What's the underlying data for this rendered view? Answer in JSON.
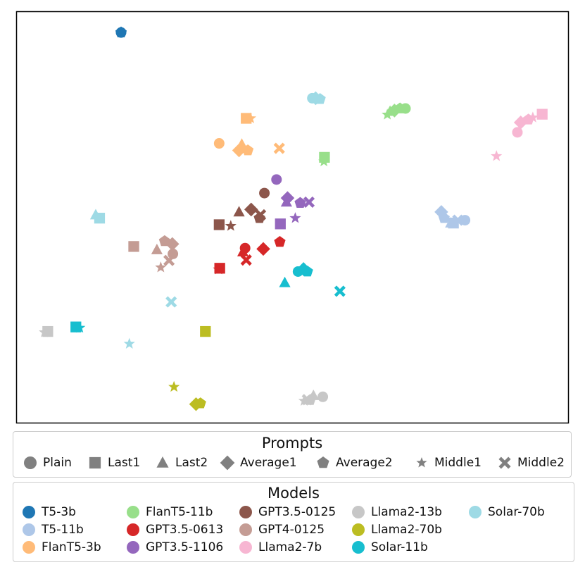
{
  "chart_data": {
    "type": "scatter",
    "title": "",
    "xlabel": "",
    "ylabel": "",
    "xlim": [
      0,
      100
    ],
    "ylim": [
      0,
      100
    ],
    "axes_ticks": false,
    "prompts_legend": {
      "title": "Prompts",
      "entries": [
        {
          "name": "Plain",
          "marker": "circle"
        },
        {
          "name": "Last1",
          "marker": "square"
        },
        {
          "name": "Last2",
          "marker": "triangle"
        },
        {
          "name": "Average1",
          "marker": "diamond"
        },
        {
          "name": "Average2",
          "marker": "pentagon"
        },
        {
          "name": "Middle1",
          "marker": "star"
        },
        {
          "name": "Middle2",
          "marker": "x"
        }
      ]
    },
    "models_legend": {
      "title": "Models",
      "entries": [
        {
          "name": "T5-3b",
          "color": "#1f77b4"
        },
        {
          "name": "T5-11b",
          "color": "#aec7e8"
        },
        {
          "name": "FlanT5-3b",
          "color": "#ffbb78"
        },
        {
          "name": "FlanT5-11b",
          "color": "#98df8a"
        },
        {
          "name": "GPT3.5-0613",
          "color": "#d62728"
        },
        {
          "name": "GPT3.5-1106",
          "color": "#9467bd"
        },
        {
          "name": "GPT3.5-0125",
          "color": "#8c564b"
        },
        {
          "name": "GPT4-0125",
          "color": "#c49c94"
        },
        {
          "name": "Llama2-7b",
          "color": "#f7b6d2"
        },
        {
          "name": "Llama2-13b",
          "color": "#c7c7c7"
        },
        {
          "name": "Llama2-70b",
          "color": "#bcbd22"
        },
        {
          "name": "Solar-11b",
          "color": "#17becf"
        },
        {
          "name": "Solar-70b",
          "color": "#9edae5"
        }
      ]
    },
    "series": [
      {
        "model": "T5-3b",
        "color": "#1f77b4",
        "points": [
          {
            "prompt": "star",
            "x": 18.9,
            "y": 95.0
          },
          {
            "prompt": "circle",
            "x": 18.9,
            "y": 95.0
          },
          {
            "prompt": "pentagon",
            "x": 18.9,
            "y": 95.0
          }
        ]
      },
      {
        "model": "T5-11b",
        "color": "#aec7e8",
        "points": [
          {
            "prompt": "diamond",
            "x": 77.0,
            "y": 51.3
          },
          {
            "prompt": "pentagon",
            "x": 77.5,
            "y": 49.8
          },
          {
            "prompt": "triangle",
            "x": 78.7,
            "y": 48.6
          },
          {
            "prompt": "square",
            "x": 79.2,
            "y": 48.6
          },
          {
            "prompt": "x",
            "x": 80.0,
            "y": 49.3
          },
          {
            "prompt": "circle",
            "x": 81.3,
            "y": 49.3
          }
        ]
      },
      {
        "model": "FlanT5-3b",
        "color": "#ffbb78",
        "points": [
          {
            "prompt": "square",
            "x": 41.6,
            "y": 74.1
          },
          {
            "prompt": "star",
            "x": 42.4,
            "y": 74.1
          },
          {
            "prompt": "circle",
            "x": 36.7,
            "y": 68.0
          },
          {
            "prompt": "triangle",
            "x": 40.8,
            "y": 67.8
          },
          {
            "prompt": "diamond",
            "x": 40.3,
            "y": 66.3
          },
          {
            "prompt": "pentagon",
            "x": 41.9,
            "y": 66.3
          },
          {
            "prompt": "x",
            "x": 47.6,
            "y": 66.8
          }
        ]
      },
      {
        "model": "FlanT5-11b",
        "color": "#98df8a",
        "points": [
          {
            "prompt": "star",
            "x": 67.2,
            "y": 75.0
          },
          {
            "prompt": "triangle",
            "x": 67.7,
            "y": 75.8
          },
          {
            "prompt": "diamond",
            "x": 68.5,
            "y": 76.0
          },
          {
            "prompt": "pentagon",
            "x": 69.5,
            "y": 76.5
          },
          {
            "prompt": "circle",
            "x": 70.5,
            "y": 76.5
          },
          {
            "prompt": "square",
            "x": 55.8,
            "y": 64.6
          },
          {
            "prompt": "star",
            "x": 55.7,
            "y": 63.6
          }
        ]
      },
      {
        "model": "GPT3.5-0613",
        "color": "#d62728",
        "points": [
          {
            "prompt": "square",
            "x": 36.8,
            "y": 37.6
          },
          {
            "prompt": "star",
            "x": 36.6,
            "y": 37.3
          },
          {
            "prompt": "circle",
            "x": 41.4,
            "y": 42.5
          },
          {
            "prompt": "triangle",
            "x": 41.0,
            "y": 41.6
          },
          {
            "prompt": "x",
            "x": 41.6,
            "y": 39.6
          },
          {
            "prompt": "diamond",
            "x": 44.7,
            "y": 42.3
          },
          {
            "prompt": "pentagon",
            "x": 47.7,
            "y": 44.0
          }
        ]
      },
      {
        "model": "GPT3.5-1106",
        "color": "#9467bd",
        "points": [
          {
            "prompt": "circle",
            "x": 47.1,
            "y": 59.2
          },
          {
            "prompt": "diamond",
            "x": 49.1,
            "y": 54.7
          },
          {
            "prompt": "triangle",
            "x": 48.9,
            "y": 53.7
          },
          {
            "prompt": "pentagon",
            "x": 51.4,
            "y": 53.5
          },
          {
            "prompt": "x",
            "x": 53.0,
            "y": 53.7
          },
          {
            "prompt": "star",
            "x": 50.5,
            "y": 49.8
          },
          {
            "prompt": "square",
            "x": 47.8,
            "y": 48.4
          }
        ]
      },
      {
        "model": "GPT3.5-0125",
        "color": "#8c564b",
        "points": [
          {
            "prompt": "circle",
            "x": 44.9,
            "y": 55.9
          },
          {
            "prompt": "diamond",
            "x": 42.5,
            "y": 51.9
          },
          {
            "prompt": "x",
            "x": 44.2,
            "y": 50.6
          },
          {
            "prompt": "pentagon",
            "x": 44.0,
            "y": 49.8
          },
          {
            "prompt": "triangle",
            "x": 40.3,
            "y": 51.3
          },
          {
            "prompt": "star",
            "x": 38.8,
            "y": 47.9
          },
          {
            "prompt": "square",
            "x": 36.7,
            "y": 48.2
          }
        ]
      },
      {
        "model": "GPT4-0125",
        "color": "#c49c94",
        "points": [
          {
            "prompt": "square",
            "x": 21.2,
            "y": 42.9
          },
          {
            "prompt": "pentagon",
            "x": 26.8,
            "y": 44.2
          },
          {
            "prompt": "diamond",
            "x": 28.2,
            "y": 43.5
          },
          {
            "prompt": "circle",
            "x": 28.3,
            "y": 41.1
          },
          {
            "prompt": "triangle",
            "x": 25.4,
            "y": 42.1
          },
          {
            "prompt": "x",
            "x": 27.6,
            "y": 39.5
          },
          {
            "prompt": "star",
            "x": 26.1,
            "y": 37.8
          }
        ]
      },
      {
        "model": "Llama2-7b",
        "color": "#f7b6d2",
        "points": [
          {
            "prompt": "square",
            "x": 95.3,
            "y": 75.1
          },
          {
            "prompt": "star",
            "x": 93.6,
            "y": 74.3
          },
          {
            "prompt": "diamond",
            "x": 91.4,
            "y": 73.1
          },
          {
            "prompt": "pentagon",
            "x": 92.8,
            "y": 73.8
          },
          {
            "prompt": "circle",
            "x": 90.8,
            "y": 70.7
          },
          {
            "prompt": "star",
            "x": 87.0,
            "y": 64.9
          }
        ]
      },
      {
        "model": "Llama2-13b",
        "color": "#c7c7c7",
        "points": [
          {
            "prompt": "star",
            "x": 5.0,
            "y": 22.0
          },
          {
            "prompt": "square",
            "x": 5.6,
            "y": 22.2
          },
          {
            "prompt": "triangle",
            "x": 53.8,
            "y": 6.6
          },
          {
            "prompt": "pentagon",
            "x": 53.2,
            "y": 5.5
          },
          {
            "prompt": "circle",
            "x": 55.5,
            "y": 6.3
          },
          {
            "prompt": "star",
            "x": 52.1,
            "y": 5.3
          },
          {
            "prompt": "x",
            "x": 52.7,
            "y": 5.6
          }
        ]
      },
      {
        "model": "Llama2-70b",
        "color": "#bcbd22",
        "points": [
          {
            "prompt": "square",
            "x": 34.2,
            "y": 22.2
          },
          {
            "prompt": "star",
            "x": 28.5,
            "y": 8.7
          },
          {
            "prompt": "diamond",
            "x": 32.5,
            "y": 4.5
          },
          {
            "prompt": "pentagon",
            "x": 33.3,
            "y": 4.7
          }
        ]
      },
      {
        "model": "Solar-11b",
        "color": "#17becf",
        "points": [
          {
            "prompt": "square",
            "x": 10.7,
            "y": 23.3
          },
          {
            "prompt": "star",
            "x": 11.4,
            "y": 23.1
          },
          {
            "prompt": "circle",
            "x": 51.0,
            "y": 36.8
          },
          {
            "prompt": "diamond",
            "x": 52.0,
            "y": 37.4
          },
          {
            "prompt": "pentagon",
            "x": 52.7,
            "y": 36.8
          },
          {
            "prompt": "triangle",
            "x": 48.6,
            "y": 34.1
          },
          {
            "prompt": "x",
            "x": 58.6,
            "y": 32.0
          }
        ]
      },
      {
        "model": "Solar-70b",
        "color": "#9edae5",
        "points": [
          {
            "prompt": "circle",
            "x": 53.6,
            "y": 79.0
          },
          {
            "prompt": "diamond",
            "x": 54.2,
            "y": 79.0
          },
          {
            "prompt": "pentagon",
            "x": 55.0,
            "y": 78.8
          },
          {
            "prompt": "triangle",
            "x": 14.3,
            "y": 50.6
          },
          {
            "prompt": "square",
            "x": 15.0,
            "y": 49.8
          },
          {
            "prompt": "x",
            "x": 28.0,
            "y": 29.4
          },
          {
            "prompt": "star",
            "x": 20.4,
            "y": 19.2
          }
        ]
      }
    ]
  }
}
